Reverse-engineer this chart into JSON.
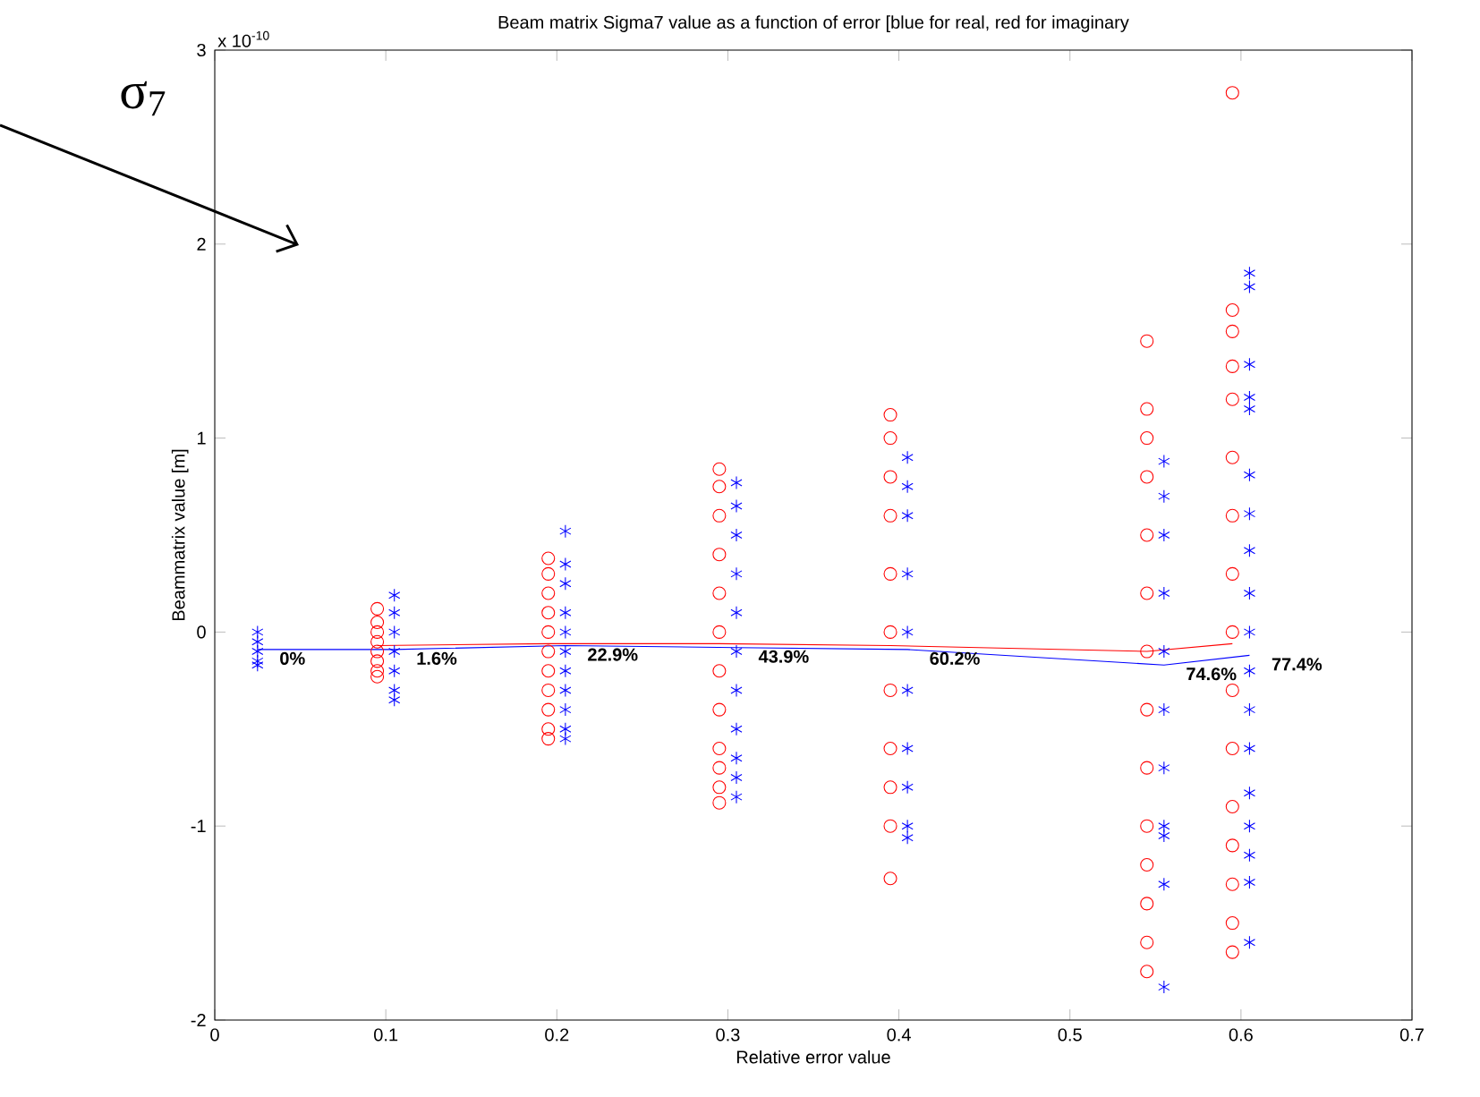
{
  "chart_data": {
    "type": "scatter",
    "title": "Beam matrix Sigma7 value as a function of error [blue for real, red for imaginary",
    "xlabel": "Relative error value",
    "ylabel": "Beammatrix value [m]",
    "xlim": [
      0,
      0.7
    ],
    "xticks": [
      0,
      0.1,
      0.2,
      0.3,
      0.4,
      0.5,
      0.6,
      0.7
    ],
    "ylim": [
      -2,
      3
    ],
    "yticks": [
      -2,
      -1,
      0,
      1,
      2,
      3
    ],
    "grid": false,
    "series": [
      {
        "color": "#ff0000",
        "marker": "circle",
        "x": [
          0.095,
          0.095,
          0.095,
          0.095,
          0.095,
          0.095,
          0.095,
          0.095,
          0.195,
          0.195,
          0.195,
          0.195,
          0.195,
          0.195,
          0.195,
          0.195,
          0.195,
          0.195,
          0.195,
          0.295,
          0.295,
          0.295,
          0.295,
          0.295,
          0.295,
          0.295,
          0.295,
          0.295,
          0.295,
          0.295,
          0.295,
          0.395,
          0.395,
          0.395,
          0.395,
          0.395,
          0.395,
          0.395,
          0.395,
          0.395,
          0.395,
          0.395,
          0.545,
          0.545,
          0.545,
          0.545,
          0.545,
          0.545,
          0.545,
          0.545,
          0.545,
          0.545,
          0.545,
          0.545,
          0.545,
          0.545,
          0.595,
          0.595,
          0.595,
          0.595,
          0.595,
          0.595,
          0.595,
          0.595,
          0.595,
          0.595,
          0.595,
          0.595,
          0.595,
          0.595,
          0.595,
          0.595
        ],
        "values": [
          0.12,
          0.05,
          0,
          -0.05,
          -0.1,
          -0.15,
          -0.2,
          -0.23,
          0.38,
          0.3,
          0.2,
          0.1,
          0,
          -0.1,
          -0.2,
          -0.3,
          -0.4,
          -0.5,
          -0.55,
          0.84,
          0.75,
          0.6,
          0.4,
          0.2,
          0,
          -0.2,
          -0.4,
          -0.6,
          -0.7,
          -0.8,
          -0.88,
          1.12,
          1.0,
          0.8,
          0.6,
          0.3,
          0,
          -0.3,
          -0.6,
          -0.8,
          -1.0,
          -1.27,
          1.5,
          1.15,
          1.0,
          0.8,
          0.5,
          0.2,
          -0.1,
          -0.4,
          -0.7,
          -1.0,
          -1.2,
          -1.4,
          -1.6,
          -1.75,
          2.78,
          1.66,
          1.55,
          1.37,
          1.2,
          0.9,
          0.6,
          0.3,
          0,
          -0.3,
          -0.6,
          -0.9,
          -1.1,
          -1.3,
          -1.5,
          -1.65
        ]
      },
      {
        "color": "#0000ff",
        "marker": "cross",
        "x": [
          0.025,
          0.025,
          0.025,
          0.025,
          0.025,
          0.105,
          0.105,
          0.105,
          0.105,
          0.105,
          0.105,
          0.105,
          0.205,
          0.205,
          0.205,
          0.205,
          0.205,
          0.205,
          0.205,
          0.205,
          0.205,
          0.205,
          0.205,
          0.305,
          0.305,
          0.305,
          0.305,
          0.305,
          0.305,
          0.305,
          0.305,
          0.305,
          0.305,
          0.305,
          0.405,
          0.405,
          0.405,
          0.405,
          0.405,
          0.405,
          0.405,
          0.405,
          0.405,
          0.405,
          0.555,
          0.555,
          0.555,
          0.555,
          0.555,
          0.555,
          0.555,
          0.555,
          0.555,
          0.555,
          0.555,
          0.605,
          0.605,
          0.605,
          0.605,
          0.605,
          0.605,
          0.605,
          0.605,
          0.605,
          0.605,
          0.605,
          0.605,
          0.605,
          0.605,
          0.605,
          0.605,
          0.605,
          0.605
        ],
        "values": [
          0.0,
          -0.05,
          -0.1,
          -0.15,
          -0.17,
          0.19,
          0.1,
          0,
          -0.1,
          -0.2,
          -0.3,
          -0.35,
          0.52,
          0.35,
          0.25,
          0.1,
          0,
          -0.1,
          -0.2,
          -0.3,
          -0.4,
          -0.5,
          -0.55,
          0.77,
          0.65,
          0.5,
          0.3,
          0.1,
          -0.1,
          -0.3,
          -0.5,
          -0.65,
          -0.75,
          -0.85,
          0.9,
          0.75,
          0.6,
          0.3,
          0,
          -0.3,
          -0.6,
          -0.8,
          -1.0,
          -1.06,
          0.88,
          0.7,
          0.5,
          0.2,
          -0.1,
          -0.4,
          -0.7,
          -1.0,
          -1.05,
          -1.3,
          -1.83,
          1.85,
          1.78,
          1.38,
          1.21,
          1.15,
          0.81,
          0.61,
          0.42,
          0.2,
          0,
          -0.2,
          -0.4,
          -0.6,
          -0.83,
          -1.0,
          -1.15,
          -1.29,
          -1.6
        ]
      },
      {
        "type": "line",
        "color": "#ff0000",
        "marker": "none",
        "x": [
          0.095,
          0.195,
          0.295,
          0.395,
          0.545,
          0.595
        ],
        "values": [
          -0.07,
          -0.06,
          -0.06,
          -0.07,
          -0.1,
          -0.06
        ]
      },
      {
        "type": "line",
        "color": "#0000ff",
        "marker": "none",
        "x": [
          0.025,
          0.105,
          0.205,
          0.305,
          0.405,
          0.555,
          0.605
        ],
        "values": [
          -0.09,
          -0.09,
          -0.07,
          -0.08,
          -0.09,
          -0.17,
          -0.12
        ]
      }
    ],
    "annotations": [
      {
        "text": "0%",
        "x": 0.025,
        "y": -0.09
      },
      {
        "text": "1.6%",
        "x": 0.105,
        "y": -0.09
      },
      {
        "text": "22.9%",
        "x": 0.205,
        "y": -0.07
      },
      {
        "text": "43.9%",
        "x": 0.305,
        "y": -0.08
      },
      {
        "text": "60.2%",
        "x": 0.405,
        "y": -0.09
      },
      {
        "text": "74.6%",
        "x": 0.555,
        "y": -0.17
      },
      {
        "text": "77.4%",
        "x": 0.605,
        "y": -0.12
      },
      "x 10$^{-10}$",
      "σ$_{7}$"
    ]
  }
}
